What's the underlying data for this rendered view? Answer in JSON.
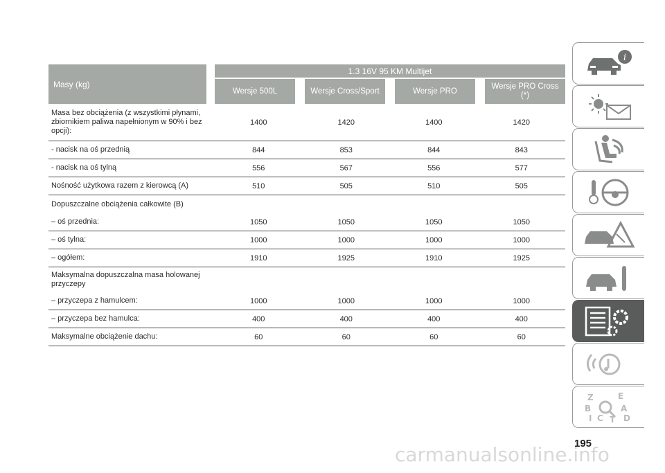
{
  "table": {
    "header_label": "Masy (kg)",
    "engine": "1.3 16V 95 KM Multijet",
    "versions": [
      "Wersje 500L",
      "Wersje Cross/Sport",
      "Wersje PRO",
      "Wersje PRO Cross (*)"
    ],
    "rows": [
      {
        "label": "Masa bez obciążenia (z wszystkimi płynami, zbiornikiem paliwa napełnionym w 90% i bez opcji):",
        "values": [
          "1400",
          "1420",
          "1400",
          "1420"
        ]
      },
      {
        "label": "- nacisk na oś przednią",
        "values": [
          "844",
          "853",
          "844",
          "843"
        ]
      },
      {
        "label": "- nacisk na oś tylną",
        "values": [
          "556",
          "567",
          "556",
          "577"
        ]
      },
      {
        "label": "Nośność użytkowa razem z kierowcą (A)",
        "values": [
          "510",
          "505",
          "510",
          "505"
        ]
      },
      {
        "label": "Dopuszczalne obciążenia całkowite (B)",
        "values": [
          "",
          "",
          "",
          ""
        ]
      },
      {
        "label": "– oś przednia:",
        "values": [
          "1050",
          "1050",
          "1050",
          "1050"
        ]
      },
      {
        "label": "– oś tylna:",
        "values": [
          "1000",
          "1000",
          "1000",
          "1000"
        ]
      },
      {
        "label": "– ogółem:",
        "values": [
          "1910",
          "1925",
          "1910",
          "1925"
        ]
      },
      {
        "label": "Maksymalna dopuszczalna masa holowanej przyczepy",
        "values": [
          "",
          "",
          "",
          ""
        ]
      },
      {
        "label": "– przyczepa z hamulcem:",
        "values": [
          "1000",
          "1000",
          "1000",
          "1000"
        ]
      },
      {
        "label": "– przyczepa bez hamulca:",
        "values": [
          "400",
          "400",
          "400",
          "400"
        ]
      },
      {
        "label": "Maksymalne obciążenie dachu:",
        "values": [
          "60",
          "60",
          "60",
          "60"
        ]
      }
    ]
  },
  "sidebar": {
    "tabs": [
      {
        "icon": "car-info-icon",
        "active": false
      },
      {
        "icon": "warning-lights-icon",
        "active": false
      },
      {
        "icon": "seat-safety-icon",
        "active": false
      },
      {
        "icon": "steering-wheel-key-icon",
        "active": false
      },
      {
        "icon": "car-emergency-icon",
        "active": false
      },
      {
        "icon": "car-maintenance-icon",
        "active": true
      },
      {
        "icon": "technical-data-icon",
        "active": false
      },
      {
        "icon": "multimedia-icon",
        "active": false
      },
      {
        "icon": "alphabetical-index-icon",
        "active": false
      }
    ],
    "active_color": "#5a5c5b"
  },
  "page_number": "195",
  "watermark": "carmanualsonline.info"
}
